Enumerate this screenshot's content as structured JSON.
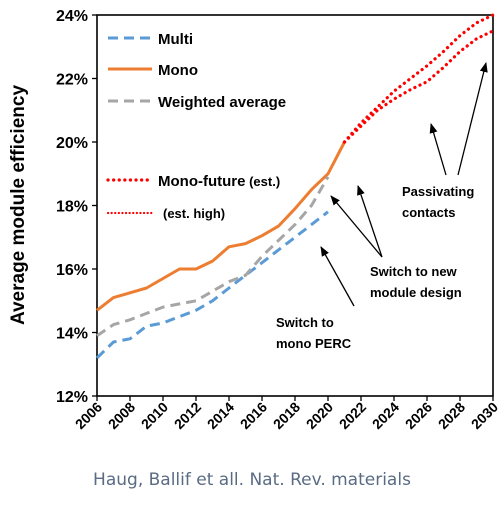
{
  "chart_data": {
    "type": "line",
    "ylabel": "Average module efficiency",
    "xlim": [
      2006,
      2030
    ],
    "ylim": [
      12,
      24
    ],
    "x_ticks": [
      "2006",
      "2008",
      "2010",
      "2012",
      "2014",
      "2016",
      "2018",
      "2020",
      "2022",
      "2024",
      "2026",
      "2028",
      "2030"
    ],
    "y_ticks": [
      "12%",
      "14%",
      "16%",
      "18%",
      "20%",
      "22%",
      "24%"
    ],
    "grid": false,
    "legend_position": "top-left",
    "series": [
      {
        "name": "Multi",
        "color": "#5b9bd5",
        "style": "dashed",
        "x": [
          2006,
          2007,
          2008,
          2009,
          2010,
          2011,
          2012,
          2013,
          2014,
          2015,
          2016,
          2017,
          2018,
          2019,
          2020
        ],
        "y": [
          13.2,
          13.7,
          13.8,
          14.2,
          14.3,
          14.5,
          14.7,
          15.0,
          15.4,
          15.8,
          16.2,
          16.6,
          17.0,
          17.4,
          17.8
        ]
      },
      {
        "name": "Mono",
        "color": "#ed7d31",
        "style": "solid",
        "x": [
          2006,
          2007,
          2008,
          2009,
          2010,
          2011,
          2012,
          2013,
          2014,
          2015,
          2016,
          2017,
          2018,
          2019,
          2020,
          2021
        ],
        "y": [
          14.7,
          15.1,
          15.25,
          15.4,
          15.7,
          16.0,
          16.0,
          16.25,
          16.7,
          16.8,
          17.05,
          17.35,
          17.9,
          18.5,
          19.0,
          20.0
        ]
      },
      {
        "name": "Weighted average",
        "color": "#a6a6a6",
        "style": "dashed",
        "x": [
          2006,
          2007,
          2008,
          2009,
          2010,
          2011,
          2012,
          2013,
          2014,
          2015,
          2016,
          2017,
          2018,
          2019,
          2020
        ],
        "y": [
          13.9,
          14.25,
          14.4,
          14.6,
          14.8,
          14.9,
          15.0,
          15.3,
          15.6,
          15.8,
          16.4,
          16.9,
          17.4,
          18.0,
          18.9
        ]
      },
      {
        "name": "Mono-future (est.)",
        "color": "#ff0000",
        "style": "dotted",
        "x": [
          2021,
          2022,
          2023,
          2024,
          2025,
          2026,
          2027,
          2028,
          2029,
          2030
        ],
        "y": [
          20.0,
          20.5,
          21.0,
          21.35,
          21.65,
          21.9,
          22.35,
          22.85,
          23.25,
          23.5
        ]
      },
      {
        "name": "(est. high)",
        "color": "#ff0000",
        "style": "dotted",
        "x": [
          2021,
          2022,
          2023,
          2024,
          2025,
          2026,
          2027,
          2028,
          2029,
          2030
        ],
        "y": [
          20.0,
          20.6,
          21.1,
          21.6,
          22.0,
          22.4,
          22.85,
          23.35,
          23.75,
          24.0
        ]
      }
    ],
    "legend_labels": [
      "Multi",
      "Mono",
      "Weighted average",
      "Mono-future",
      " (est.)",
      "(est. high)"
    ],
    "annotations": [
      {
        "lines": [
          "Switch to",
          "mono PERC"
        ]
      },
      {
        "lines": [
          "Switch to new",
          "module design"
        ]
      },
      {
        "lines": [
          "Passivating",
          "contacts"
        ]
      }
    ]
  },
  "caption": "Haug, Ballif et all. Nat. Rev. materials"
}
